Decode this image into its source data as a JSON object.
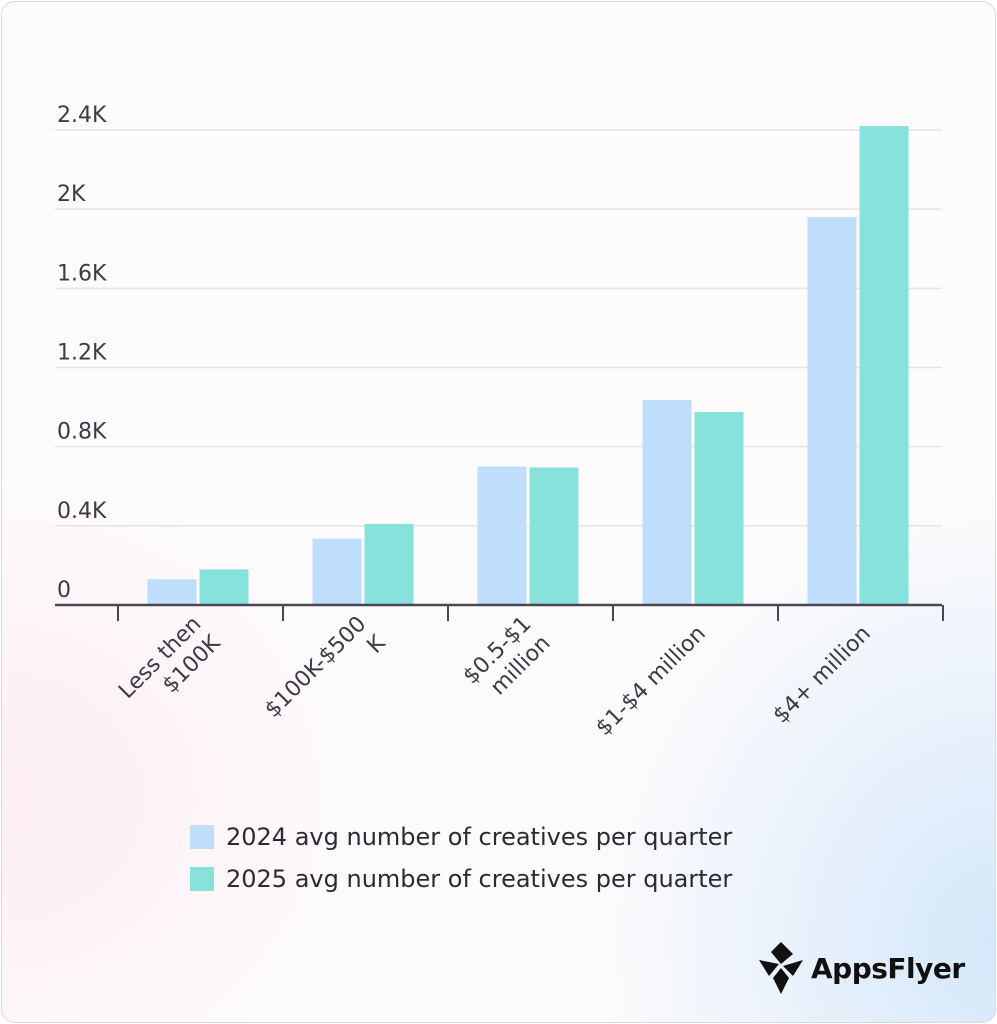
{
  "chart_data": {
    "type": "bar",
    "categories": [
      [
        "Less then",
        "$100K"
      ],
      [
        "$100K-$500",
        "K"
      ],
      [
        "$0.5-$1",
        "million"
      ],
      [
        "$1-$4 million"
      ],
      [
        "$4+ million"
      ]
    ],
    "series": [
      {
        "name": "2024 avg number of creatives per quarter",
        "color": "#bfdefc",
        "values": [
          130,
          335,
          700,
          1035,
          1960
        ]
      },
      {
        "name": "2025 avg number of creatives per quarter",
        "color": "#88e2dc",
        "values": [
          180,
          410,
          695,
          975,
          2420
        ]
      }
    ],
    "ylim": [
      0,
      2400
    ],
    "yticks": [
      0,
      400,
      800,
      1200,
      1600,
      2000,
      2400
    ],
    "ytick_labels": [
      "0",
      "0.4K",
      "0.8K",
      "1.2K",
      "1.6K",
      "2K",
      "2.4K"
    ],
    "title": "",
    "xlabel": "",
    "ylabel": "",
    "grid": true,
    "legend_position": "bottom-center"
  },
  "brand": {
    "name": "AppsFlyer"
  }
}
